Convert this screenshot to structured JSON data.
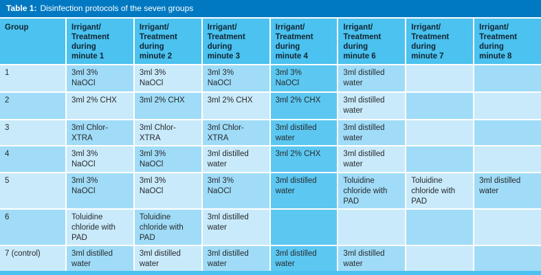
{
  "palette": {
    "title_bar": "#0079c2",
    "header_cell": "#4bc2ef",
    "cell_light": "#c9eafa",
    "cell_mid": "#a0dcf7",
    "cell_accent": "#5cc8f1",
    "grid_line": "#ffffff",
    "title_text": "#ffffff",
    "header_text": "#122433",
    "body_text": "#26292e"
  },
  "table": {
    "title_label": "Table 1:",
    "title_text": "Disinfection protocols of the seven groups",
    "accent_column_index": 4,
    "columns": [
      {
        "label": "Group"
      },
      {
        "label": "Irrigant/\nTreatment\nduring\nminute 1"
      },
      {
        "label": "Irrigant/\nTreatment\nduring\nminute 2"
      },
      {
        "label": "Irrigant/\nTreatment\nduring\nminute 3"
      },
      {
        "label": "Irrigant/\nTreatment\nduring\nminute 4"
      },
      {
        "label": "Irrigant/\nTreatment\nduring\nminute 6"
      },
      {
        "label": "Irrigant/\nTreatment\nduring\nminute 7"
      },
      {
        "label": "Irrigant/\nTreatment\nduring\nminute 8"
      }
    ],
    "rows": [
      {
        "group": "1",
        "cells": [
          "3ml 3%\nNaOCl",
          "3ml 3%\nNaOCl",
          "3ml 3%\nNaOCl",
          "3ml 3%\nNaOCl",
          "3ml distilled\nwater",
          "",
          ""
        ]
      },
      {
        "group": "2",
        "cells": [
          "3ml 2% CHX",
          "3ml 2% CHX",
          "3ml 2% CHX",
          "3ml 2% CHX",
          "3ml distilled\nwater",
          "",
          ""
        ]
      },
      {
        "group": "3",
        "cells": [
          "3ml Chlor-\nXTRA",
          "3ml Chlor-\nXTRA",
          "3ml Chlor-\nXTRA",
          "3ml distilled\nwater",
          "3ml distilled\nwater",
          "",
          ""
        ]
      },
      {
        "group": "4",
        "cells": [
          "3ml 3%\nNaOCl",
          "3ml 3%\nNaOCl",
          "3ml distilled\nwater",
          "3ml 2% CHX",
          "3ml distilled\nwater",
          "",
          ""
        ]
      },
      {
        "group": "5",
        "cells": [
          "3ml 3%\nNaOCl",
          "3ml 3%\nNaOCl",
          "3ml 3%\nNaOCl",
          "3ml distilled\nwater",
          "Toluidine\nchloride with\nPAD",
          "Toluidine\nchloride with\nPAD",
          "3ml distilled\nwater"
        ]
      },
      {
        "group": "6",
        "cells": [
          "Toluidine\nchloride with\nPAD",
          "Toluidine\nchloride with\nPAD",
          "3ml distilled\nwater",
          "",
          "",
          "",
          ""
        ]
      },
      {
        "group": "7 (control)",
        "cells": [
          "3ml distilled\nwater",
          "3ml distilled\nwater",
          "3ml distilled\nwater",
          "3ml distilled\nwater",
          "3ml distilled\nwater",
          "",
          ""
        ]
      }
    ]
  }
}
